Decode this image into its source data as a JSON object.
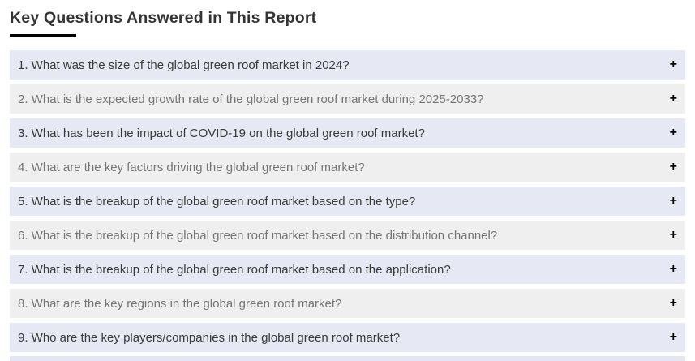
{
  "page": {
    "title": "Key Questions Answered in This Report"
  },
  "accordion": {
    "expand_icon": "+",
    "items": [
      {
        "label": "1. What was the size of the global green roof market in 2024?"
      },
      {
        "label": "2. What is the expected growth rate of the global green roof market during 2025-2033?"
      },
      {
        "label": "3. What has been the impact of COVID-19 on the global green roof market?"
      },
      {
        "label": "4. What are the key factors driving the global green roof market?"
      },
      {
        "label": "5. What is the breakup of the global green roof market based on the type?"
      },
      {
        "label": "6. What is the breakup of the global green roof market based on the distribution channel?"
      },
      {
        "label": "7. What is the breakup of the global green roof market based on the application?"
      },
      {
        "label": "8. What are the key regions in the global green roof market?"
      },
      {
        "label": "9. Who are the key players/companies in the global green roof market?"
      }
    ]
  },
  "colors": {
    "title_text": "#333333",
    "title_underline": "#000000",
    "row_alt_lavender": "#e6e8f4",
    "row_alt_gray": "#efefef",
    "question_text_dark": "#3a3a3a",
    "question_text_gray": "#757575",
    "plus_icon": "#000000",
    "next_row_partial": "#e4e6f1"
  }
}
